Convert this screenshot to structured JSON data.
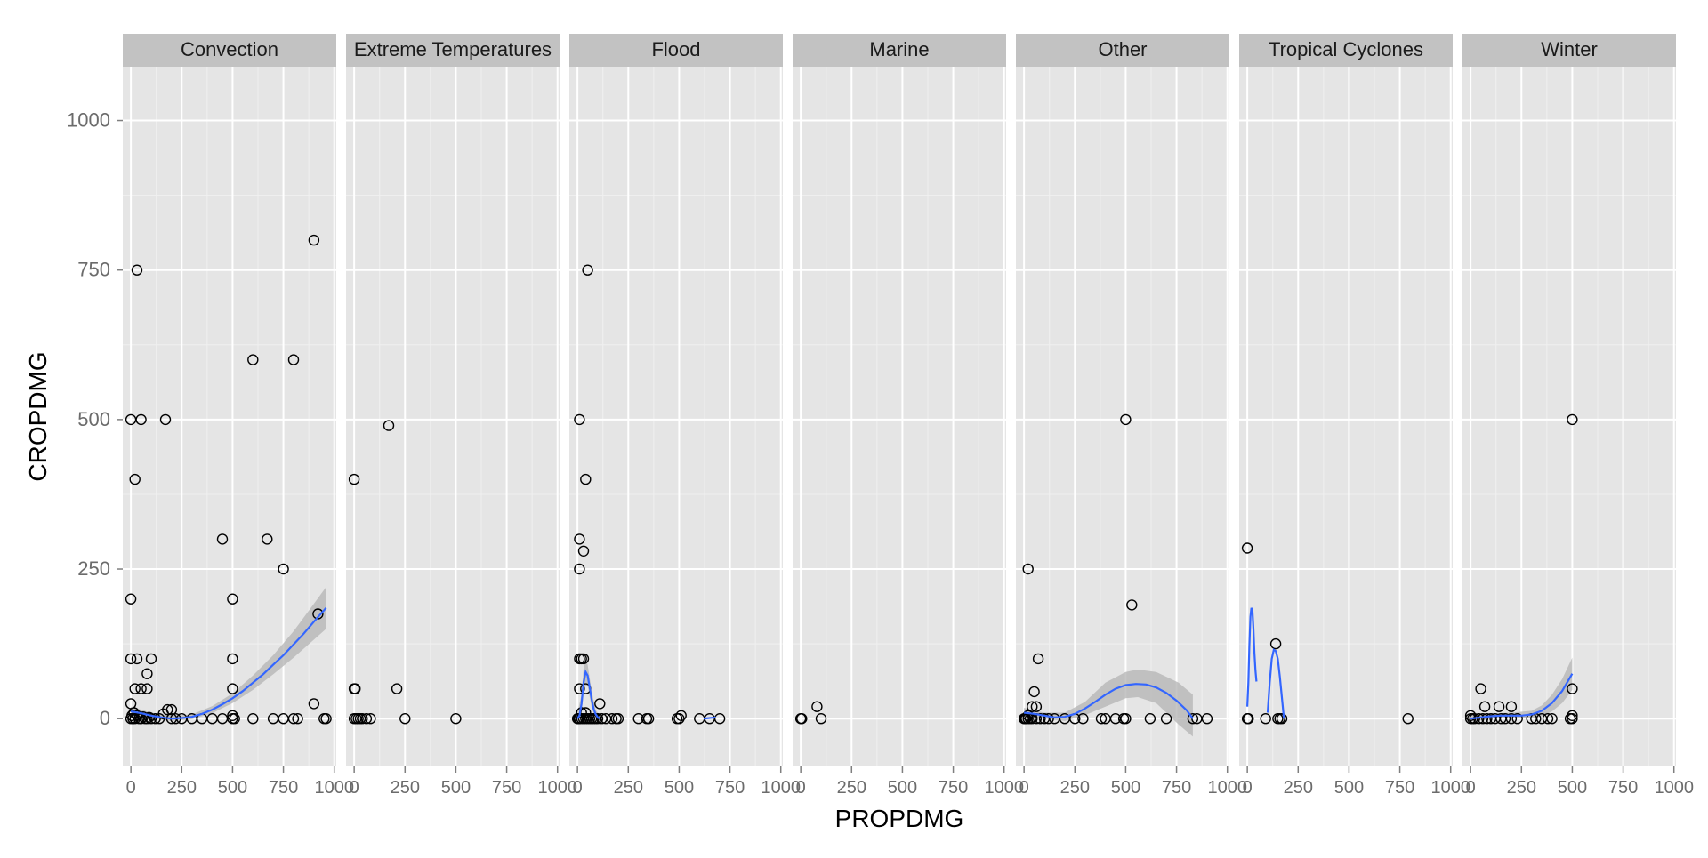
{
  "chart_data": {
    "type": "scatter",
    "title": "",
    "xlabel": "PROPDMG",
    "ylabel": "CROPDMG",
    "xlim": [
      -40,
      1010
    ],
    "ylim": [
      -80,
      1090
    ],
    "x_ticks": [
      0,
      250,
      500,
      750,
      1000
    ],
    "y_ticks": [
      0,
      250,
      500,
      750,
      1000
    ],
    "grid": true,
    "colors": {
      "panel_bg": "#e5e5e5",
      "strip_bg": "#c2c2c2",
      "grid_major": "#ffffff",
      "grid_minor": "#f0f0f0",
      "smooth_line": "#3366ff",
      "ribbon": "#b3b3b3",
      "point_stroke": "#000000"
    },
    "facets": [
      {
        "label": "Convection",
        "points": [
          [
            0,
            200
          ],
          [
            0,
            500
          ],
          [
            20,
            400
          ],
          [
            30,
            750
          ],
          [
            50,
            500
          ],
          [
            170,
            500
          ],
          [
            600,
            600
          ],
          [
            800,
            600
          ],
          [
            900,
            800
          ],
          [
            450,
            300
          ],
          [
            670,
            300
          ],
          [
            750,
            250
          ],
          [
            500,
            200
          ],
          [
            920,
            175
          ],
          [
            0,
            100
          ],
          [
            30,
            100
          ],
          [
            100,
            100
          ],
          [
            80,
            75
          ],
          [
            20,
            50
          ],
          [
            50,
            50
          ],
          [
            80,
            50
          ],
          [
            500,
            100
          ],
          [
            500,
            50
          ],
          [
            0,
            25
          ],
          [
            900,
            25
          ],
          [
            180,
            15
          ],
          [
            200,
            15
          ],
          [
            500,
            5
          ],
          [
            0,
            0
          ],
          [
            5,
            5
          ],
          [
            10,
            0
          ],
          [
            15,
            10
          ],
          [
            20,
            0
          ],
          [
            30,
            5
          ],
          [
            40,
            0
          ],
          [
            50,
            0
          ],
          [
            60,
            3
          ],
          [
            70,
            0
          ],
          [
            80,
            0
          ],
          [
            90,
            2
          ],
          [
            100,
            0
          ],
          [
            120,
            0
          ],
          [
            140,
            0
          ],
          [
            160,
            8
          ],
          [
            200,
            0
          ],
          [
            220,
            0
          ],
          [
            250,
            0
          ],
          [
            300,
            0
          ],
          [
            350,
            0
          ],
          [
            400,
            0
          ],
          [
            450,
            0
          ],
          [
            500,
            0
          ],
          [
            510,
            0
          ],
          [
            600,
            0
          ],
          [
            700,
            0
          ],
          [
            750,
            0
          ],
          [
            800,
            0
          ],
          [
            820,
            0
          ],
          [
            950,
            0
          ],
          [
            960,
            0
          ]
        ],
        "smooth": [
          [
            0,
            12
          ],
          [
            50,
            9
          ],
          [
            100,
            5
          ],
          [
            150,
            2
          ],
          [
            200,
            0
          ],
          [
            250,
            1
          ],
          [
            300,
            3
          ],
          [
            350,
            8
          ],
          [
            400,
            15
          ],
          [
            450,
            24
          ],
          [
            500,
            34
          ],
          [
            550,
            46
          ],
          [
            600,
            60
          ],
          [
            650,
            74
          ],
          [
            700,
            90
          ],
          [
            750,
            106
          ],
          [
            800,
            124
          ],
          [
            850,
            142
          ],
          [
            900,
            162
          ],
          [
            960,
            185
          ]
        ],
        "ribbon": [
          [
            0,
            4,
            20
          ],
          [
            100,
            0,
            10
          ],
          [
            200,
            -4,
            5
          ],
          [
            300,
            -1,
            7
          ],
          [
            400,
            9,
            21
          ],
          [
            500,
            26,
            42
          ],
          [
            600,
            48,
            72
          ],
          [
            700,
            74,
            106
          ],
          [
            800,
            102,
            146
          ],
          [
            900,
            132,
            192
          ],
          [
            960,
            150,
            220
          ]
        ]
      },
      {
        "label": "Extreme Temperatures",
        "points": [
          [
            0,
            400
          ],
          [
            170,
            490
          ],
          [
            0,
            50
          ],
          [
            5,
            50
          ],
          [
            210,
            50
          ],
          [
            0,
            0
          ],
          [
            10,
            0
          ],
          [
            20,
            0
          ],
          [
            30,
            0
          ],
          [
            40,
            0
          ],
          [
            60,
            0
          ],
          [
            80,
            0
          ],
          [
            250,
            0
          ],
          [
            500,
            0
          ]
        ],
        "smooth": [],
        "ribbon": []
      },
      {
        "label": "Flood",
        "points": [
          [
            50,
            750
          ],
          [
            10,
            500
          ],
          [
            40,
            400
          ],
          [
            10,
            300
          ],
          [
            10,
            250
          ],
          [
            30,
            280
          ],
          [
            10,
            100
          ],
          [
            20,
            100
          ],
          [
            30,
            100
          ],
          [
            40,
            50
          ],
          [
            10,
            50
          ],
          [
            110,
            25
          ],
          [
            20,
            10
          ],
          [
            40,
            10
          ],
          [
            0,
            0
          ],
          [
            5,
            0
          ],
          [
            10,
            0
          ],
          [
            20,
            0
          ],
          [
            30,
            0
          ],
          [
            40,
            0
          ],
          [
            50,
            0
          ],
          [
            60,
            0
          ],
          [
            70,
            0
          ],
          [
            80,
            0
          ],
          [
            90,
            0
          ],
          [
            100,
            0
          ],
          [
            120,
            0
          ],
          [
            140,
            0
          ],
          [
            170,
            0
          ],
          [
            190,
            0
          ],
          [
            200,
            0
          ],
          [
            300,
            0
          ],
          [
            340,
            0
          ],
          [
            350,
            0
          ],
          [
            490,
            0
          ],
          [
            500,
            0
          ],
          [
            510,
            5
          ],
          [
            600,
            0
          ],
          [
            650,
            0
          ],
          [
            700,
            0
          ]
        ],
        "smooth": [
          [
            0,
            0
          ],
          [
            10,
            5
          ],
          [
            20,
            25
          ],
          [
            30,
            60
          ],
          [
            40,
            78
          ],
          [
            50,
            72
          ],
          [
            60,
            52
          ],
          [
            70,
            32
          ],
          [
            80,
            16
          ],
          [
            90,
            7
          ],
          [
            100,
            2
          ],
          [
            110,
            0
          ]
        ],
        "ribbon": [
          [
            0,
            -10,
            10
          ],
          [
            20,
            10,
            40
          ],
          [
            35,
            55,
            105
          ],
          [
            50,
            55,
            90
          ],
          [
            70,
            18,
            46
          ],
          [
            90,
            0,
            14
          ],
          [
            110,
            -5,
            5
          ]
        ],
        "smooth_segment2": [
          [
            620,
            0
          ],
          [
            680,
            2
          ]
        ]
      },
      {
        "label": "Marine",
        "points": [
          [
            0,
            0
          ],
          [
            5,
            0
          ],
          [
            80,
            20
          ],
          [
            100,
            0
          ]
        ],
        "smooth": [],
        "ribbon": []
      },
      {
        "label": "Other",
        "points": [
          [
            20,
            250
          ],
          [
            500,
            500
          ],
          [
            530,
            190
          ],
          [
            70,
            100
          ],
          [
            50,
            45
          ],
          [
            40,
            20
          ],
          [
            60,
            20
          ],
          [
            20,
            5
          ],
          [
            0,
            0
          ],
          [
            5,
            0
          ],
          [
            10,
            0
          ],
          [
            20,
            0
          ],
          [
            30,
            0
          ],
          [
            40,
            0
          ],
          [
            60,
            0
          ],
          [
            80,
            0
          ],
          [
            100,
            0
          ],
          [
            120,
            0
          ],
          [
            150,
            0
          ],
          [
            200,
            0
          ],
          [
            250,
            0
          ],
          [
            290,
            0
          ],
          [
            380,
            0
          ],
          [
            400,
            0
          ],
          [
            450,
            0
          ],
          [
            490,
            0
          ],
          [
            500,
            0
          ],
          [
            620,
            0
          ],
          [
            700,
            0
          ],
          [
            830,
            0
          ],
          [
            850,
            0
          ],
          [
            900,
            0
          ]
        ],
        "smooth": [
          [
            0,
            10
          ],
          [
            50,
            8
          ],
          [
            100,
            5
          ],
          [
            150,
            2
          ],
          [
            200,
            3
          ],
          [
            250,
            8
          ],
          [
            300,
            17
          ],
          [
            350,
            28
          ],
          [
            400,
            40
          ],
          [
            450,
            50
          ],
          [
            500,
            56
          ],
          [
            550,
            58
          ],
          [
            600,
            57
          ],
          [
            650,
            52
          ],
          [
            700,
            43
          ],
          [
            750,
            30
          ],
          [
            800,
            14
          ],
          [
            830,
            0
          ]
        ],
        "ribbon": [
          [
            0,
            2,
            18
          ],
          [
            100,
            0,
            10
          ],
          [
            200,
            -4,
            10
          ],
          [
            300,
            6,
            28
          ],
          [
            400,
            20,
            60
          ],
          [
            500,
            34,
            78
          ],
          [
            560,
            36,
            82
          ],
          [
            650,
            26,
            78
          ],
          [
            700,
            10,
            70
          ],
          [
            760,
            -10,
            60
          ],
          [
            830,
            -30,
            40
          ]
        ]
      },
      {
        "label": "Tropical Cyclones",
        "points": [
          [
            0,
            285
          ],
          [
            140,
            125
          ],
          [
            0,
            0
          ],
          [
            5,
            0
          ],
          [
            90,
            0
          ],
          [
            150,
            0
          ],
          [
            160,
            0
          ],
          [
            170,
            0
          ],
          [
            790,
            0
          ]
        ],
        "smooth": [
          [
            0,
            20
          ],
          [
            5,
            60
          ],
          [
            10,
            120
          ],
          [
            15,
            170
          ],
          [
            20,
            185
          ],
          [
            25,
            180
          ],
          [
            30,
            150
          ],
          [
            35,
            110
          ],
          [
            40,
            80
          ],
          [
            45,
            62
          ]
        ],
        "smooth_segment2": [
          [
            100,
            10
          ],
          [
            110,
            60
          ],
          [
            120,
            100
          ],
          [
            130,
            115
          ],
          [
            140,
            113
          ],
          [
            150,
            100
          ],
          [
            160,
            70
          ],
          [
            170,
            35
          ],
          [
            180,
            0
          ]
        ],
        "ribbon": []
      },
      {
        "label": "Winter",
        "points": [
          [
            500,
            500
          ],
          [
            500,
            50
          ],
          [
            50,
            50
          ],
          [
            70,
            20
          ],
          [
            140,
            20
          ],
          [
            200,
            20
          ],
          [
            0,
            5
          ],
          [
            500,
            5
          ],
          [
            0,
            0
          ],
          [
            10,
            0
          ],
          [
            20,
            0
          ],
          [
            40,
            0
          ],
          [
            60,
            0
          ],
          [
            80,
            0
          ],
          [
            100,
            0
          ],
          [
            120,
            0
          ],
          [
            150,
            0
          ],
          [
            170,
            0
          ],
          [
            200,
            0
          ],
          [
            230,
            0
          ],
          [
            300,
            0
          ],
          [
            320,
            0
          ],
          [
            350,
            0
          ],
          [
            380,
            0
          ],
          [
            400,
            0
          ],
          [
            490,
            0
          ],
          [
            500,
            0
          ]
        ],
        "smooth": [
          [
            0,
            0
          ],
          [
            50,
            2
          ],
          [
            100,
            4
          ],
          [
            150,
            5
          ],
          [
            200,
            5
          ],
          [
            250,
            5
          ],
          [
            300,
            7
          ],
          [
            350,
            13
          ],
          [
            400,
            26
          ],
          [
            450,
            46
          ],
          [
            500,
            75
          ]
        ],
        "ribbon": [
          [
            0,
            -5,
            6
          ],
          [
            100,
            0,
            9
          ],
          [
            200,
            1,
            10
          ],
          [
            300,
            1,
            13
          ],
          [
            350,
            4,
            22
          ],
          [
            400,
            12,
            40
          ],
          [
            450,
            26,
            66
          ],
          [
            500,
            48,
            102
          ]
        ]
      }
    ]
  }
}
